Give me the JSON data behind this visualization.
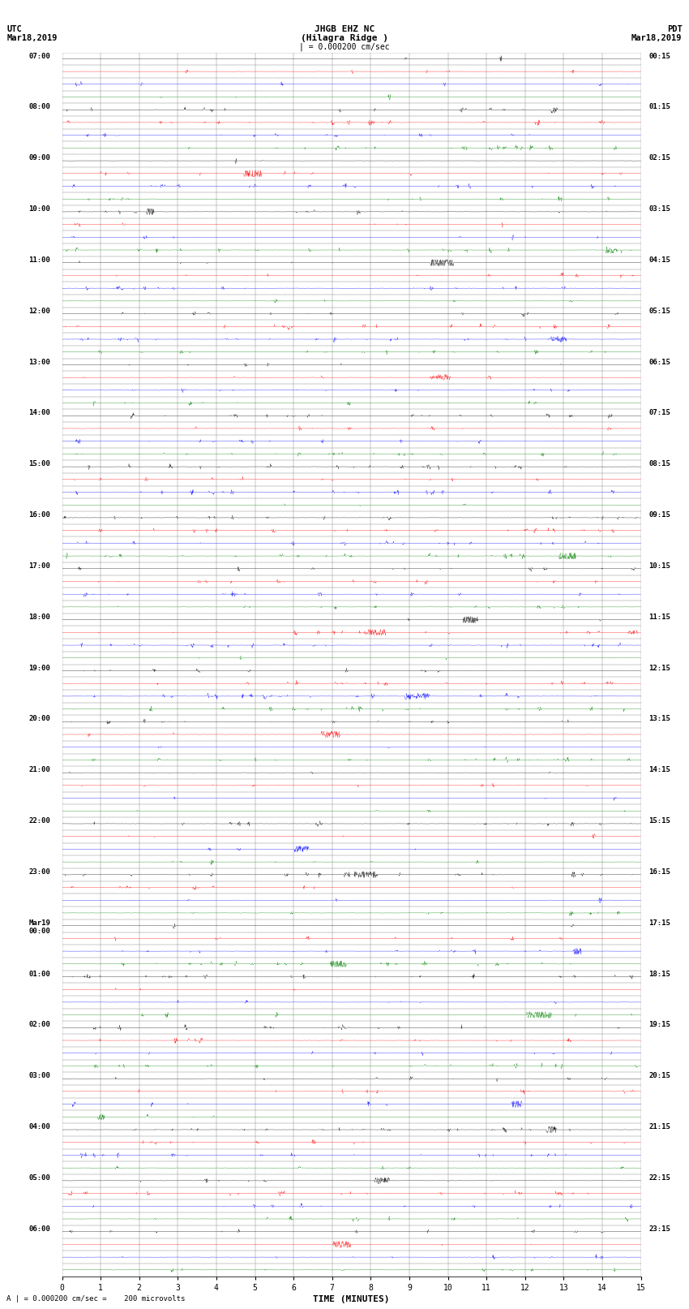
{
  "title_line1": "JHGB EHZ NC",
  "title_line2": "(Hilagra Ridge )",
  "scale_label": "| = 0.000200 cm/sec",
  "left_label_top": "UTC",
  "left_label_date": "Mar18,2019",
  "right_label_top": "PDT",
  "right_label_date": "Mar18,2019",
  "bottom_label": "TIME (MINUTES)",
  "bottom_note": "A | = 0.000200 cm/sec =    200 microvolts",
  "n_minutes": 15,
  "bg_color": "#ffffff",
  "grid_color": "#808080",
  "seed": 12345,
  "row_colors": [
    "#000000",
    "#ff0000",
    "#0000ff",
    "#008000"
  ],
  "hour_blocks": [
    {
      "utc": "07:00",
      "pdt": "00:15"
    },
    {
      "utc": "08:00",
      "pdt": "01:15"
    },
    {
      "utc": "09:00",
      "pdt": "02:15"
    },
    {
      "utc": "10:00",
      "pdt": "03:15"
    },
    {
      "utc": "11:00",
      "pdt": "04:15"
    },
    {
      "utc": "12:00",
      "pdt": "05:15"
    },
    {
      "utc": "13:00",
      "pdt": "06:15"
    },
    {
      "utc": "14:00",
      "pdt": "07:15"
    },
    {
      "utc": "15:00",
      "pdt": "08:15"
    },
    {
      "utc": "16:00",
      "pdt": "09:15"
    },
    {
      "utc": "17:00",
      "pdt": "10:15"
    },
    {
      "utc": "18:00",
      "pdt": "11:15"
    },
    {
      "utc": "19:00",
      "pdt": "12:15"
    },
    {
      "utc": "20:00",
      "pdt": "13:15"
    },
    {
      "utc": "21:00",
      "pdt": "14:15"
    },
    {
      "utc": "22:00",
      "pdt": "15:15"
    },
    {
      "utc": "23:00",
      "pdt": "16:15"
    },
    {
      "utc": "Mar19\n00:00",
      "pdt": "17:15"
    },
    {
      "utc": "01:00",
      "pdt": "18:15"
    },
    {
      "utc": "02:00",
      "pdt": "19:15"
    },
    {
      "utc": "03:00",
      "pdt": "20:15"
    },
    {
      "utc": "04:00",
      "pdt": "21:15"
    },
    {
      "utc": "05:00",
      "pdt": "22:15"
    },
    {
      "utc": "06:00",
      "pdt": "23:15"
    }
  ]
}
